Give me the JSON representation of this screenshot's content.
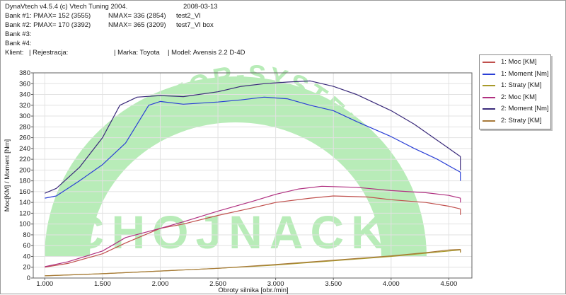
{
  "header": {
    "app": "DynaVtech v4.5.4 (c) Vtech Tuning 2004.",
    "date": "2008-03-13",
    "bank1_pmax": "Bank #1: PMAX= 152 (3555)",
    "bank1_nmax": "NMAX= 336 (2854)",
    "bank1_file": "test2_VI",
    "bank2_pmax": "Bank #2: PMAX= 170 (3392)",
    "bank2_nmax": "NMAX= 365 (3209)",
    "bank2_file": "test7_VI box",
    "bank3": "Bank #3:",
    "bank4": "Bank #4:",
    "klient": "Klient:",
    "rejestracja": "| Rejestracja:",
    "marka": "| Marka: Toyota",
    "model": "| Model: Avensis 2.2 D-4D"
  },
  "watermark": {
    "arc_text": "MOTOR-SYSTEM",
    "name": "CHOJNACKI",
    "color": "#b8ecb8"
  },
  "legend": [
    {
      "label": "1: Moc [KM]",
      "color": "#c0504d"
    },
    {
      "label": "1: Moment [Nm]",
      "color": "#2a3fd6"
    },
    {
      "label": "1: Straty [KM]",
      "color": "#a89a2a"
    },
    {
      "label": "2: Moc [KM]",
      "color": "#b03080"
    },
    {
      "label": "2: Moment [Nm]",
      "color": "#3a2a7a"
    },
    {
      "label": "2: Straty [KM]",
      "color": "#a87a3a"
    }
  ],
  "chart_data": {
    "type": "line",
    "xlabel": "Obroty silnika [obr./min]",
    "ylabel": "Moc[KM] / Moment [Nm]",
    "xlim": [
      900,
      4700
    ],
    "ylim": [
      0,
      380
    ],
    "x_ticks": [
      "1.000",
      "1.500",
      "2.000",
      "2.500",
      "3.000",
      "3.500",
      "4.000",
      "4.500"
    ],
    "x_tick_values": [
      1000,
      1500,
      2000,
      2500,
      3000,
      3500,
      4000,
      4500
    ],
    "y_ticks": [
      "0",
      "20",
      "40",
      "60",
      "80",
      "100",
      "120",
      "140",
      "160",
      "180",
      "200",
      "220",
      "240",
      "260",
      "280",
      "300",
      "320",
      "340",
      "360",
      "380"
    ],
    "y_tick_values": [
      0,
      20,
      40,
      60,
      80,
      100,
      120,
      140,
      160,
      180,
      200,
      220,
      240,
      260,
      280,
      300,
      320,
      340,
      360,
      380
    ],
    "grid": true,
    "series": [
      {
        "name": "1: Moc [KM]",
        "color": "#c0504d",
        "x": [
          1000,
          1200,
          1500,
          1700,
          2000,
          2200,
          2500,
          2800,
          3000,
          3300,
          3500,
          3800,
          4000,
          4300,
          4500,
          4600,
          4600
        ],
        "y": [
          20,
          27,
          45,
          65,
          92,
          100,
          116,
          130,
          140,
          148,
          152,
          150,
          145,
          140,
          133,
          128,
          117
        ]
      },
      {
        "name": "1: Moment [Nm]",
        "color": "#2a3fd6",
        "x": [
          1000,
          1100,
          1300,
          1500,
          1700,
          1900,
          2000,
          2200,
          2500,
          2700,
          2900,
          3100,
          3300,
          3500,
          3700,
          4000,
          4200,
          4400,
          4500,
          4600,
          4600
        ],
        "y": [
          148,
          152,
          180,
          210,
          250,
          320,
          327,
          322,
          326,
          330,
          335,
          332,
          320,
          310,
          290,
          262,
          240,
          220,
          208,
          196,
          180
        ]
      },
      {
        "name": "1: Straty [KM]",
        "color": "#a89a2a",
        "x": [
          1000,
          1500,
          2000,
          2500,
          3000,
          3500,
          4000,
          4300,
          4500,
          4600,
          4600
        ],
        "y": [
          4,
          8,
          13,
          18,
          24,
          32,
          40,
          46,
          50,
          52,
          47
        ]
      },
      {
        "name": "2: Moc [KM]",
        "color": "#b03080",
        "x": [
          1000,
          1200,
          1500,
          1700,
          2000,
          2200,
          2500,
          2800,
          3000,
          3200,
          3400,
          3700,
          4000,
          4300,
          4500,
          4600,
          4600
        ],
        "y": [
          21,
          30,
          50,
          75,
          92,
          104,
          124,
          142,
          155,
          165,
          170,
          168,
          162,
          158,
          153,
          148,
          140
        ]
      },
      {
        "name": "2: Moment [Nm]",
        "color": "#3a2a7a",
        "x": [
          1000,
          1100,
          1300,
          1500,
          1650,
          1800,
          2000,
          2200,
          2500,
          2700,
          2900,
          3100,
          3300,
          3500,
          3700,
          4000,
          4200,
          4400,
          4500,
          4600,
          4600
        ],
        "y": [
          157,
          166,
          205,
          260,
          320,
          335,
          338,
          336,
          345,
          355,
          360,
          363,
          365,
          355,
          340,
          310,
          285,
          255,
          240,
          225,
          200
        ]
      },
      {
        "name": "2: Straty [KM]",
        "color": "#a87a3a",
        "x": [
          1000,
          1500,
          2000,
          2500,
          3000,
          3500,
          4000,
          4300,
          4500,
          4600,
          4600
        ],
        "y": [
          4,
          8,
          13,
          18,
          25,
          33,
          41,
          47,
          52,
          53,
          48
        ]
      }
    ]
  }
}
